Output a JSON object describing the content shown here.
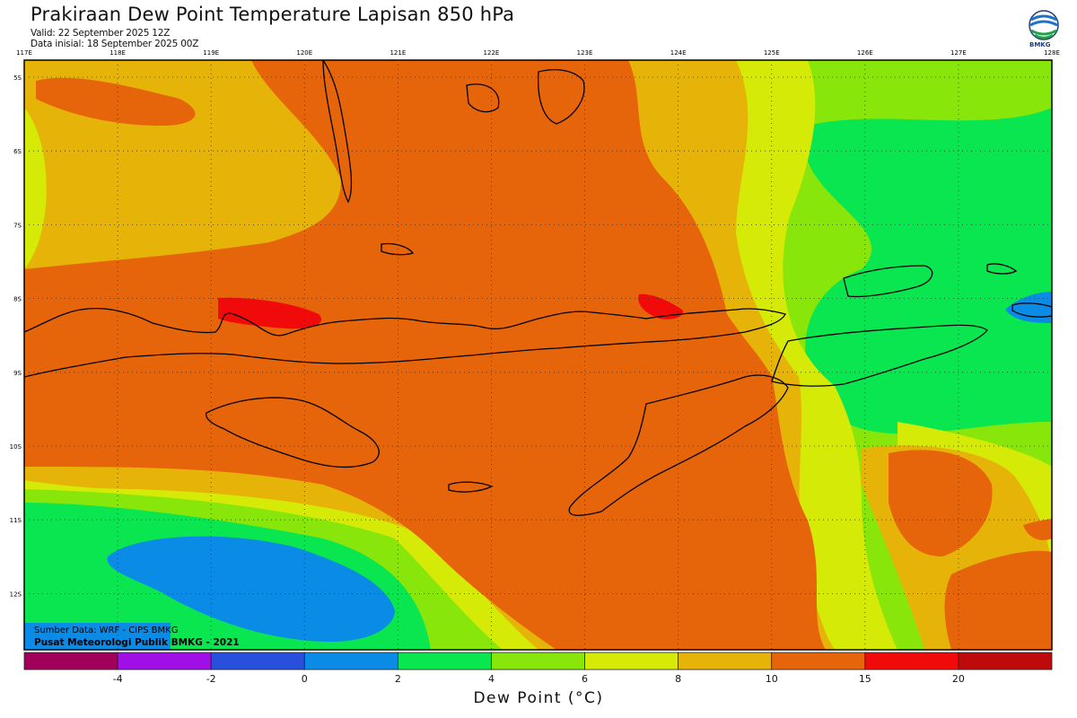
{
  "header": {
    "title": "Prakiraan Dew Point Temperature Lapisan 850 hPa",
    "valid": "Valid: 22 September 2025 12Z",
    "initial": "Data inisial: 18 September 2025 00Z",
    "logo_text": "BMKG"
  },
  "map": {
    "lon_labels": [
      "117E",
      "118E",
      "119E",
      "120E",
      "121E",
      "122E",
      "123E",
      "124E",
      "125E",
      "126E",
      "127E",
      "128E"
    ],
    "lat_labels": [
      "5S",
      "6S",
      "7S",
      "8S",
      "9S",
      "10S",
      "11S",
      "12S"
    ],
    "credit_source": "Sumber Data: WRF - CIPS BMKG",
    "credit_org": "Pusat Meteorologi Publik BMKG - 2021"
  },
  "colorbar": {
    "title": "Dew Point (°C)",
    "tick_labels": [
      "-4",
      "-2",
      "0",
      "2",
      "4",
      "6",
      "8",
      "10",
      "15",
      "20"
    ],
    "colors": [
      "#a0005a",
      "#a010e6",
      "#2850dc",
      "#0a8ce6",
      "#0ae650",
      "#88e60a",
      "#d6ea08",
      "#e6b408",
      "#e6640a",
      "#f00a0a",
      "#be0a0a"
    ]
  }
}
